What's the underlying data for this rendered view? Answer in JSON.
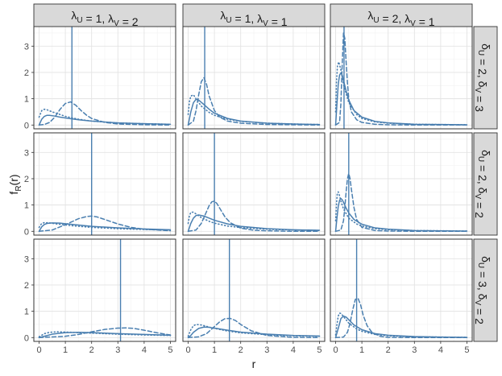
{
  "chart_data": {
    "type": "line",
    "xlabel": "r",
    "ylabel": "f_R(r)",
    "ylabel_main": "f",
    "ylabel_sub": "R",
    "ylabel_arg": "(r)",
    "xlim": [
      0,
      5
    ],
    "ylim": [
      0,
      3.6
    ],
    "xticks": [
      0,
      1,
      2,
      3,
      4,
      5
    ],
    "yticks": [
      0,
      1,
      2,
      3
    ],
    "grid": true,
    "line_color": "#4a7fb0",
    "columns": [
      {
        "label": "λU = 1, λV = 2",
        "lambda_U": 1,
        "lambda_V": 2
      },
      {
        "label": "λU = 1, λV = 1",
        "lambda_U": 1,
        "lambda_V": 1
      },
      {
        "label": "λU = 2, λV = 1",
        "lambda_U": 2,
        "lambda_V": 1
      }
    ],
    "rows": [
      {
        "label": "δU = 2, δV = 3",
        "delta_U": 2,
        "delta_V": 3
      },
      {
        "label": "δU = 2, δV = 2",
        "delta_U": 2,
        "delta_V": 2
      },
      {
        "label": "δU = 3, δV = 2",
        "delta_U": 3,
        "delta_V": 2
      }
    ],
    "panels": [
      {
        "row": 0,
        "col": 0,
        "vline": 1.25,
        "series": [
          {
            "style": "solid",
            "x": [
              0,
              0.1,
              0.2,
              0.3,
              0.4,
              0.6,
              0.8,
              1.0,
              1.5,
              2.0,
              3.0,
              4.0,
              5.0
            ],
            "y": [
              0,
              0.22,
              0.33,
              0.37,
              0.37,
              0.34,
              0.3,
              0.27,
              0.2,
              0.15,
              0.08,
              0.05,
              0.03
            ]
          },
          {
            "style": "dashed",
            "x": [
              0,
              0.2,
              0.4,
              0.6,
              0.8,
              1.0,
              1.2,
              1.4,
              1.6,
              1.8,
              2.0,
              2.5,
              3.0,
              4.0,
              5.0
            ],
            "y": [
              0,
              0.02,
              0.1,
              0.3,
              0.6,
              0.82,
              0.88,
              0.75,
              0.55,
              0.38,
              0.25,
              0.1,
              0.04,
              0.01,
              0
            ]
          },
          {
            "style": "dotted",
            "x": [
              0,
              0.1,
              0.2,
              0.3,
              0.5,
              0.8,
              1.0,
              1.5,
              2.0,
              3.0,
              4.0,
              5.0
            ],
            "y": [
              0.3,
              0.55,
              0.6,
              0.58,
              0.5,
              0.4,
              0.33,
              0.22,
              0.15,
              0.08,
              0.05,
              0.03
            ]
          }
        ]
      },
      {
        "row": 0,
        "col": 1,
        "vline": 0.63,
        "series": [
          {
            "style": "solid",
            "x": [
              0,
              0.1,
              0.2,
              0.3,
              0.4,
              0.6,
              0.8,
              1.0,
              1.5,
              2.0,
              3.0,
              4.0,
              5.0
            ],
            "y": [
              0,
              0.5,
              0.85,
              0.98,
              0.95,
              0.78,
              0.6,
              0.45,
              0.25,
              0.15,
              0.07,
              0.04,
              0.02
            ]
          },
          {
            "style": "dashed",
            "x": [
              0,
              0.2,
              0.3,
              0.4,
              0.5,
              0.6,
              0.7,
              0.8,
              1.0,
              1.2,
              1.5,
              2.0,
              3.0,
              4.0,
              5.0
            ],
            "y": [
              0,
              0.15,
              0.55,
              1.15,
              1.65,
              1.8,
              1.55,
              1.1,
              0.55,
              0.3,
              0.15,
              0.07,
              0.02,
              0.01,
              0
            ]
          },
          {
            "style": "dotted",
            "x": [
              0,
              0.05,
              0.1,
              0.2,
              0.3,
              0.5,
              0.8,
              1.0,
              1.5,
              2.0,
              3.0,
              4.0,
              5.0
            ],
            "y": [
              0.4,
              0.9,
              1.1,
              1.15,
              1.0,
              0.72,
              0.48,
              0.37,
              0.22,
              0.14,
              0.07,
              0.04,
              0.02
            ]
          }
        ]
      },
      {
        "row": 0,
        "col": 2,
        "vline": 0.32,
        "series": [
          {
            "style": "solid",
            "x": [
              0,
              0.05,
              0.1,
              0.15,
              0.2,
              0.25,
              0.3,
              0.4,
              0.5,
              0.7,
              1.0,
              1.5,
              2.0,
              3.0,
              4.0,
              5.0
            ],
            "y": [
              0,
              0.8,
              1.55,
              1.9,
              1.98,
              1.9,
              1.7,
              1.3,
              0.95,
              0.55,
              0.3,
              0.14,
              0.08,
              0.03,
              0.02,
              0.01
            ]
          },
          {
            "style": "dashed",
            "x": [
              0,
              0.15,
              0.2,
              0.25,
              0.3,
              0.35,
              0.4,
              0.45,
              0.5,
              0.6,
              0.8,
              1.0,
              1.5,
              2.0,
              3.0,
              5.0
            ],
            "y": [
              0,
              0.1,
              0.8,
              2.3,
              3.5,
              3.3,
              2.4,
              1.6,
              1.0,
              0.5,
              0.2,
              0.1,
              0.03,
              0.01,
              0,
              0
            ]
          },
          {
            "style": "dotted",
            "x": [
              0,
              0.03,
              0.07,
              0.12,
              0.2,
              0.3,
              0.5,
              0.8,
              1.0,
              1.5,
              2.0,
              3.0,
              5.0
            ],
            "y": [
              0.5,
              1.6,
              2.25,
              2.4,
              2.1,
              1.55,
              0.85,
              0.4,
              0.25,
              0.12,
              0.07,
              0.03,
              0.01
            ]
          }
        ]
      },
      {
        "row": 1,
        "col": 0,
        "vline": 2.0,
        "series": [
          {
            "style": "solid",
            "x": [
              0,
              0.1,
              0.2,
              0.3,
              0.5,
              0.8,
              1.0,
              1.5,
              2.0,
              3.0,
              4.0,
              5.0
            ],
            "y": [
              0,
              0.17,
              0.26,
              0.3,
              0.32,
              0.31,
              0.29,
              0.24,
              0.19,
              0.13,
              0.09,
              0.06
            ]
          },
          {
            "style": "dashed",
            "x": [
              0,
              0.5,
              1.0,
              1.5,
              1.8,
              2.0,
              2.2,
              2.5,
              3.0,
              3.5,
              4.0,
              5.0
            ],
            "y": [
              0,
              0.05,
              0.25,
              0.48,
              0.56,
              0.58,
              0.55,
              0.45,
              0.28,
              0.15,
              0.08,
              0.02
            ]
          },
          {
            "style": "dotted",
            "x": [
              0,
              0.1,
              0.2,
              0.4,
              0.6,
              1.0,
              1.5,
              2.0,
              3.0,
              4.0,
              5.0
            ],
            "y": [
              0.15,
              0.3,
              0.33,
              0.32,
              0.29,
              0.24,
              0.19,
              0.15,
              0.1,
              0.07,
              0.05
            ]
          }
        ]
      },
      {
        "row": 1,
        "col": 1,
        "vline": 1.0,
        "series": [
          {
            "style": "solid",
            "x": [
              0,
              0.1,
              0.2,
              0.3,
              0.4,
              0.6,
              0.8,
              1.0,
              1.5,
              2.0,
              3.0,
              4.0,
              5.0
            ],
            "y": [
              0,
              0.3,
              0.5,
              0.6,
              0.62,
              0.58,
              0.5,
              0.42,
              0.28,
              0.19,
              0.1,
              0.06,
              0.04
            ]
          },
          {
            "style": "dashed",
            "x": [
              0,
              0.3,
              0.5,
              0.7,
              0.8,
              0.9,
              1.0,
              1.1,
              1.2,
              1.4,
              1.6,
              2.0,
              2.5,
              3.0,
              4.0,
              5.0
            ],
            "y": [
              0,
              0.05,
              0.3,
              0.75,
              0.98,
              1.12,
              1.15,
              1.05,
              0.88,
              0.55,
              0.33,
              0.12,
              0.04,
              0.02,
              0,
              0
            ]
          },
          {
            "style": "dotted",
            "x": [
              0,
              0.05,
              0.1,
              0.2,
              0.3,
              0.5,
              0.8,
              1.0,
              1.5,
              2.0,
              3.0,
              4.0,
              5.0
            ],
            "y": [
              0.3,
              0.6,
              0.72,
              0.73,
              0.66,
              0.52,
              0.38,
              0.31,
              0.2,
              0.14,
              0.08,
              0.05,
              0.03
            ]
          }
        ]
      },
      {
        "row": 1,
        "col": 2,
        "vline": 0.5,
        "series": [
          {
            "style": "solid",
            "x": [
              0,
              0.05,
              0.1,
              0.15,
              0.2,
              0.25,
              0.3,
              0.4,
              0.5,
              0.7,
              1.0,
              1.5,
              2.0,
              3.0,
              5.0
            ],
            "y": [
              0,
              0.5,
              0.95,
              1.18,
              1.25,
              1.2,
              1.1,
              0.88,
              0.7,
              0.45,
              0.27,
              0.13,
              0.08,
              0.03,
              0.01
            ]
          },
          {
            "style": "dashed",
            "x": [
              0,
              0.2,
              0.3,
              0.35,
              0.4,
              0.45,
              0.5,
              0.55,
              0.6,
              0.7,
              0.8,
              1.0,
              1.5,
              2.0,
              3.0,
              5.0
            ],
            "y": [
              0,
              0.05,
              0.4,
              0.9,
              1.5,
              2.0,
              2.2,
              2.0,
              1.6,
              0.9,
              0.45,
              0.15,
              0.03,
              0.01,
              0,
              0
            ]
          },
          {
            "style": "dotted",
            "x": [
              0,
              0.03,
              0.06,
              0.1,
              0.15,
              0.2,
              0.3,
              0.5,
              0.8,
              1.0,
              1.5,
              2.0,
              3.0,
              5.0
            ],
            "y": [
              0.4,
              1.0,
              1.4,
              1.5,
              1.35,
              1.15,
              0.85,
              0.5,
              0.28,
              0.2,
              0.1,
              0.06,
              0.03,
              0.01
            ]
          }
        ]
      },
      {
        "row": 2,
        "col": 0,
        "vline": 3.1,
        "series": [
          {
            "style": "solid",
            "x": [
              0,
              0.2,
              0.5,
              1.0,
              1.5,
              2.0,
              3.0,
              4.0,
              5.0
            ],
            "y": [
              0,
              0.05,
              0.13,
              0.19,
              0.2,
              0.19,
              0.15,
              0.12,
              0.09
            ]
          },
          {
            "style": "dashed",
            "x": [
              0,
              1.0,
              1.5,
              2.0,
              2.5,
              3.0,
              3.3,
              3.6,
              4.0,
              4.5,
              5.0
            ],
            "y": [
              0,
              0.05,
              0.12,
              0.22,
              0.31,
              0.36,
              0.37,
              0.35,
              0.28,
              0.18,
              0.1
            ]
          },
          {
            "style": "dotted",
            "x": [
              0,
              0.2,
              0.4,
              0.7,
              1.0,
              1.5,
              2.0,
              3.0,
              4.0,
              5.0
            ],
            "y": [
              0.03,
              0.15,
              0.2,
              0.22,
              0.21,
              0.19,
              0.17,
              0.13,
              0.1,
              0.08
            ]
          }
        ]
      },
      {
        "row": 2,
        "col": 1,
        "vline": 1.57,
        "series": [
          {
            "style": "solid",
            "x": [
              0,
              0.1,
              0.2,
              0.4,
              0.6,
              0.8,
              1.0,
              1.5,
              2.0,
              3.0,
              4.0,
              5.0
            ],
            "y": [
              0,
              0.08,
              0.2,
              0.35,
              0.4,
              0.39,
              0.36,
              0.28,
              0.21,
              0.13,
              0.08,
              0.06
            ]
          },
          {
            "style": "dashed",
            "x": [
              0,
              0.4,
              0.7,
              1.0,
              1.2,
              1.4,
              1.6,
              1.8,
              2.0,
              2.4,
              3.0,
              4.0,
              5.0
            ],
            "y": [
              0,
              0.03,
              0.15,
              0.42,
              0.6,
              0.72,
              0.73,
              0.65,
              0.5,
              0.26,
              0.08,
              0.01,
              0
            ]
          },
          {
            "style": "dotted",
            "x": [
              0,
              0.1,
              0.2,
              0.3,
              0.5,
              0.8,
              1.0,
              1.5,
              2.0,
              3.0,
              4.0,
              5.0
            ],
            "y": [
              0.05,
              0.3,
              0.45,
              0.5,
              0.48,
              0.4,
              0.35,
              0.25,
              0.18,
              0.11,
              0.07,
              0.05
            ]
          }
        ]
      },
      {
        "row": 2,
        "col": 2,
        "vline": 0.8,
        "series": [
          {
            "style": "solid",
            "x": [
              0,
              0.1,
              0.2,
              0.3,
              0.4,
              0.5,
              0.7,
              1.0,
              1.5,
              2.0,
              3.0,
              4.0,
              5.0
            ],
            "y": [
              0,
              0.35,
              0.72,
              0.82,
              0.78,
              0.68,
              0.48,
              0.3,
              0.15,
              0.09,
              0.04,
              0.02,
              0.01
            ]
          },
          {
            "style": "dashed",
            "x": [
              0,
              0.3,
              0.45,
              0.55,
              0.65,
              0.75,
              0.85,
              0.95,
              1.05,
              1.2,
              1.4,
              1.7,
              2.0,
              3.0,
              5.0
            ],
            "y": [
              0,
              0.02,
              0.2,
              0.55,
              1.05,
              1.45,
              1.5,
              1.25,
              0.85,
              0.45,
              0.18,
              0.05,
              0.01,
              0,
              0
            ]
          },
          {
            "style": "dotted",
            "x": [
              0,
              0.05,
              0.1,
              0.15,
              0.2,
              0.3,
              0.5,
              0.8,
              1.0,
              1.5,
              2.0,
              3.0,
              5.0
            ],
            "y": [
              0.1,
              0.5,
              0.82,
              0.93,
              0.92,
              0.8,
              0.55,
              0.33,
              0.24,
              0.12,
              0.07,
              0.03,
              0.01
            ]
          }
        ]
      }
    ]
  }
}
